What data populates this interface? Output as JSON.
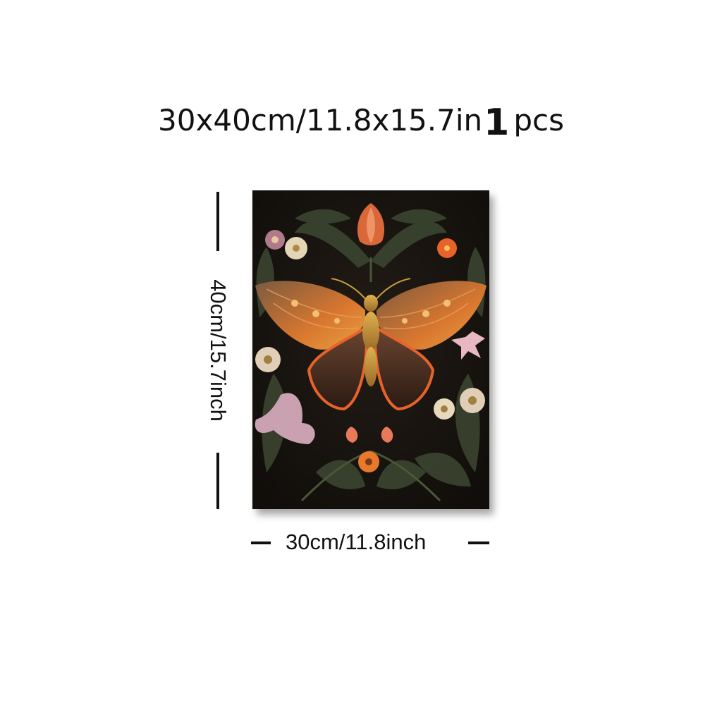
{
  "title": {
    "size_text": "30x40cm/11.8x15.7in",
    "quantity": "1",
    "quantity_unit": "pcs"
  },
  "dimensions": {
    "height_label": "40cm/15.7inch",
    "width_label": "30cm/11.8inch"
  },
  "artwork": {
    "subject": "butterfly-with-flowers",
    "colors": {
      "background": "#16130f",
      "leaf": "#3d4630",
      "wing_orange": "#e8632a",
      "wing_brown": "#5a4030",
      "gold": "#c99a3c",
      "pink": "#c9a1b0"
    }
  }
}
